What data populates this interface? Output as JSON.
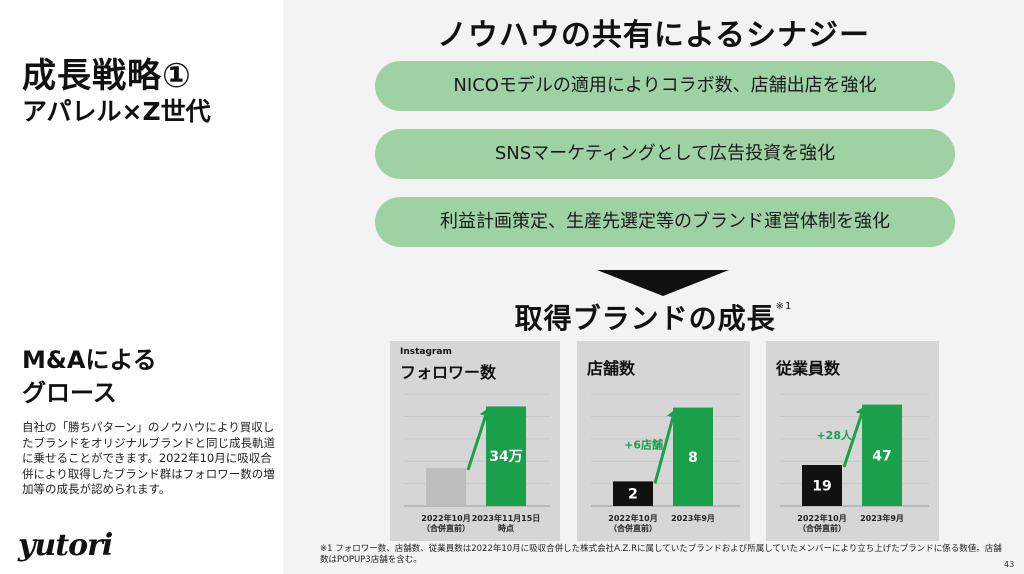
{
  "left": {
    "title": "成長戦略①",
    "subtitle": "アパレル×Z世代",
    "ma_title_line1": "M&Aによる",
    "ma_title_line2": "グロース",
    "description": "自社の「勝ちパターン」のノウハウにより買収したブランドをオリジナルブランドと同じ成長軌道に乗せることができます。2022年10月に吸収合併により取得したブランド群はフォロワー数の増加等の成長が認められます。",
    "logo": "yutori"
  },
  "header": {
    "title": "ノウハウの共有によるシナジー"
  },
  "pills": [
    {
      "label": "NICOモデルの適用によりコラボ数、店舗出店を強化"
    },
    {
      "label": "SNSマーケティングとして広告投資を強化"
    },
    {
      "label": "利益計画策定、生産先選定等のブランド運営体制を強化"
    }
  ],
  "growth": {
    "title": "取得ブランドの成長",
    "note_mark": "※1"
  },
  "colors": {
    "green": "#1aa04a",
    "pill": "#9ed2a4",
    "grey_bar": "#bdbdbd",
    "black_bar": "#111111",
    "panel": "#d6d6d6"
  },
  "chart_data": [
    {
      "type": "bar",
      "pre_title": "Instagram",
      "title": "フォロワー数",
      "categories": [
        "2022年10月",
        "2023年11月15日"
      ],
      "category_sublabels": [
        "（合併直前）",
        "時点"
      ],
      "values": [
        13,
        34
      ],
      "value_labels": [
        "",
        "34万"
      ],
      "ylim": [
        0,
        42
      ],
      "gridlines": true,
      "delta_label": ""
    },
    {
      "type": "bar",
      "title": "店舗数",
      "categories": [
        "2022年10月",
        "2023年9月"
      ],
      "category_sublabels": [
        "（合併直前）",
        ""
      ],
      "values": [
        2,
        8
      ],
      "value_labels": [
        "2",
        "8"
      ],
      "ylim": [
        0,
        10
      ],
      "gridlines": true,
      "delta_label": "+6店舗"
    },
    {
      "type": "bar",
      "title": "従業員数",
      "categories": [
        "2022年10月",
        "2023年9月"
      ],
      "category_sublabels": [
        "（合併直前）",
        ""
      ],
      "values": [
        19,
        47
      ],
      "value_labels": [
        "19",
        "47"
      ],
      "ylim": [
        0,
        57
      ],
      "gridlines": true,
      "delta_label": "+28人"
    }
  ],
  "footnote": "※1 フォロワー数、店舗数、従業員数は2022年10月に吸収合併した株式会社A.Z.Rに属していたブランドおよび所属していたメンバーにより立ち上げたブランドに係る数値。店舗数はPOPUP3店舗を含む。",
  "page_number": "43"
}
